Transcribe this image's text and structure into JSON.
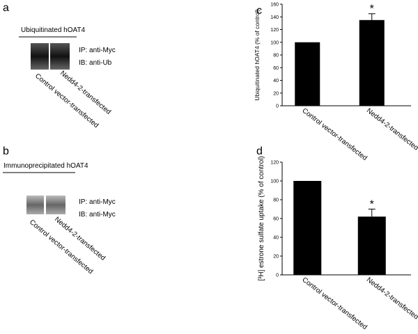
{
  "panel_a": {
    "label": "a",
    "title": "Ubiquitinated hOAT4",
    "ip": "IP: anti-Myc",
    "ib": "IB: anti-Ub",
    "lanes": [
      "Control vector-transfected",
      "Nedd4-2-transfected"
    ]
  },
  "panel_b": {
    "label": "b",
    "title": "Immunoprecipitated hOAT4",
    "ip": "IP: anti-Myc",
    "ib": "IB: anti-Myc",
    "lanes": [
      "Control vector-transfected",
      "Nedd4-2-transfected"
    ]
  },
  "chart_data": [
    {
      "type": "bar",
      "panel_label": "c",
      "y_label": "Ubiquitinated hOAT4 (% of control)",
      "categories": [
        "Control vector-transfected",
        "Nedd4-2-transfected"
      ],
      "values": [
        100,
        135
      ],
      "error": [
        null,
        10
      ],
      "color": "#000000",
      "ylim": [
        0,
        160
      ],
      "yticks": [
        0,
        20,
        40,
        60,
        80,
        100,
        120,
        140,
        160
      ],
      "annotations": [
        {
          "text": "*",
          "x": "Nedd4-2-transfected"
        }
      ]
    },
    {
      "type": "bar",
      "panel_label": "d",
      "y_label": "[³H] estrone sulfate uptake (% of control)",
      "categories": [
        "Control vector-transfected",
        "Nedd4-2-transfected"
      ],
      "values": [
        100,
        62
      ],
      "error": [
        null,
        8
      ],
      "color": "#000000",
      "ylim": [
        0,
        120
      ],
      "yticks": [
        0,
        20,
        40,
        60,
        80,
        100,
        120
      ],
      "annotations": [
        {
          "text": "*",
          "x": "Nedd4-2-transfected"
        }
      ]
    }
  ]
}
